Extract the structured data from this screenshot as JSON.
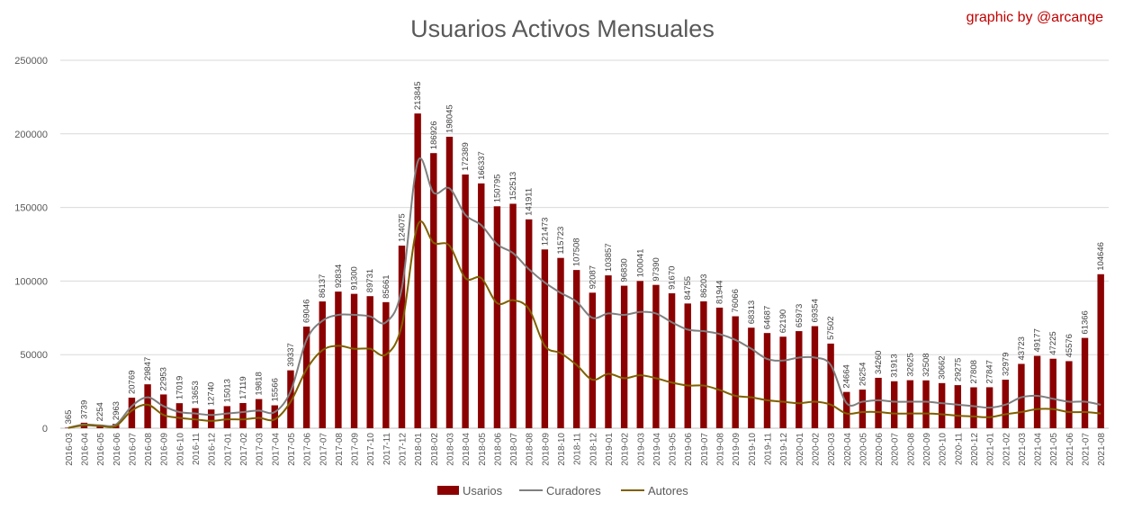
{
  "header": {
    "title": "Usuarios Activos Mensuales",
    "credit": "graphic by @arcange"
  },
  "colors": {
    "usuarios": "#8b0000",
    "curadores": "#7f7f7f",
    "autores": "#7f6000",
    "grid": "#d9d9d9"
  },
  "chart_data": {
    "type": "bar",
    "title": "Usuarios Activos Mensuales",
    "xlabel": "",
    "ylabel": "",
    "ylim": [
      0,
      250000
    ],
    "yticks": [
      0,
      50000,
      100000,
      150000,
      200000,
      250000
    ],
    "grid": true,
    "legend_position": "bottom",
    "categories": [
      "2016-03",
      "2016-04",
      "2016-05",
      "2016-06",
      "2016-07",
      "2016-08",
      "2016-09",
      "2016-10",
      "2016-11",
      "2016-12",
      "2017-01",
      "2017-02",
      "2017-03",
      "2017-04",
      "2017-05",
      "2017-06",
      "2017-07",
      "2017-08",
      "2017-09",
      "2017-10",
      "2017-11",
      "2017-12",
      "2018-01",
      "2018-02",
      "2018-03",
      "2018-04",
      "2018-05",
      "2018-06",
      "2018-07",
      "2018-08",
      "2018-09",
      "2018-10",
      "2018-11",
      "2018-12",
      "2019-01",
      "2019-02",
      "2019-03",
      "2019-04",
      "2019-05",
      "2019-06",
      "2019-07",
      "2019-08",
      "2019-09",
      "2019-10",
      "2019-11",
      "2019-12",
      "2020-01",
      "2020-02",
      "2020-03",
      "2020-04",
      "2020-05",
      "2020-06",
      "2020-07",
      "2020-08",
      "2020-09",
      "2020-10",
      "2020-11",
      "2020-12",
      "2021-01",
      "2021-02",
      "2021-03",
      "2021-04",
      "2021-05",
      "2021-06",
      "2021-07",
      "2021-08"
    ],
    "series": [
      {
        "name": "Usarios",
        "type": "bar",
        "values": [
          365,
          3739,
          2254,
          2963,
          20769,
          29847,
          22953,
          17019,
          13653,
          12740,
          15013,
          17119,
          19818,
          15566,
          39337,
          69046,
          86137,
          92834,
          91300,
          89731,
          85661,
          124075,
          213845,
          186926,
          198045,
          172389,
          166337,
          150795,
          152513,
          141911,
          121473,
          115723,
          107508,
          92087,
          103857,
          96830,
          100041,
          97390,
          91670,
          84755,
          86203,
          81944,
          76066,
          68313,
          64687,
          62190,
          65973,
          69354,
          57502,
          24664,
          26254,
          34260,
          31913,
          32625,
          32508,
          30662,
          29275,
          27808,
          27847,
          32979,
          43723,
          49177,
          47225,
          45576,
          61366,
          104646
        ]
      },
      {
        "name": "Curadores",
        "type": "line",
        "values": [
          300,
          2500,
          2000,
          2500,
          15000,
          21000,
          15000,
          11000,
          10000,
          9000,
          10000,
          11000,
          12000,
          11000,
          25000,
          60000,
          73000,
          77000,
          77000,
          76000,
          72000,
          95000,
          181000,
          160000,
          163000,
          145000,
          138000,
          125000,
          119000,
          108000,
          99000,
          92000,
          86000,
          75000,
          78000,
          77000,
          79000,
          78000,
          72000,
          67000,
          66000,
          64000,
          60000,
          54000,
          47000,
          46000,
          48000,
          48000,
          43000,
          17000,
          18000,
          19000,
          18000,
          18000,
          18000,
          17000,
          16000,
          15000,
          14000,
          16000,
          21000,
          22000,
          20000,
          18000,
          18000,
          16000
        ]
      },
      {
        "name": "Autores",
        "type": "line",
        "values": [
          200,
          2000,
          1500,
          1500,
          12000,
          16000,
          9000,
          7000,
          6000,
          5000,
          6000,
          6000,
          7000,
          6000,
          18000,
          40000,
          53000,
          56000,
          54000,
          54000,
          50000,
          70000,
          138000,
          126000,
          124000,
          102000,
          102000,
          85000,
          87000,
          81000,
          56000,
          51000,
          43000,
          33000,
          37000,
          34000,
          36000,
          34000,
          31000,
          29000,
          29000,
          26000,
          22000,
          21000,
          19000,
          18000,
          17000,
          18000,
          16000,
          10000,
          11000,
          11000,
          10000,
          10000,
          10000,
          9500,
          8500,
          8000,
          7500,
          9500,
          11000,
          13000,
          13000,
          11000,
          11000,
          10000
        ]
      }
    ]
  }
}
